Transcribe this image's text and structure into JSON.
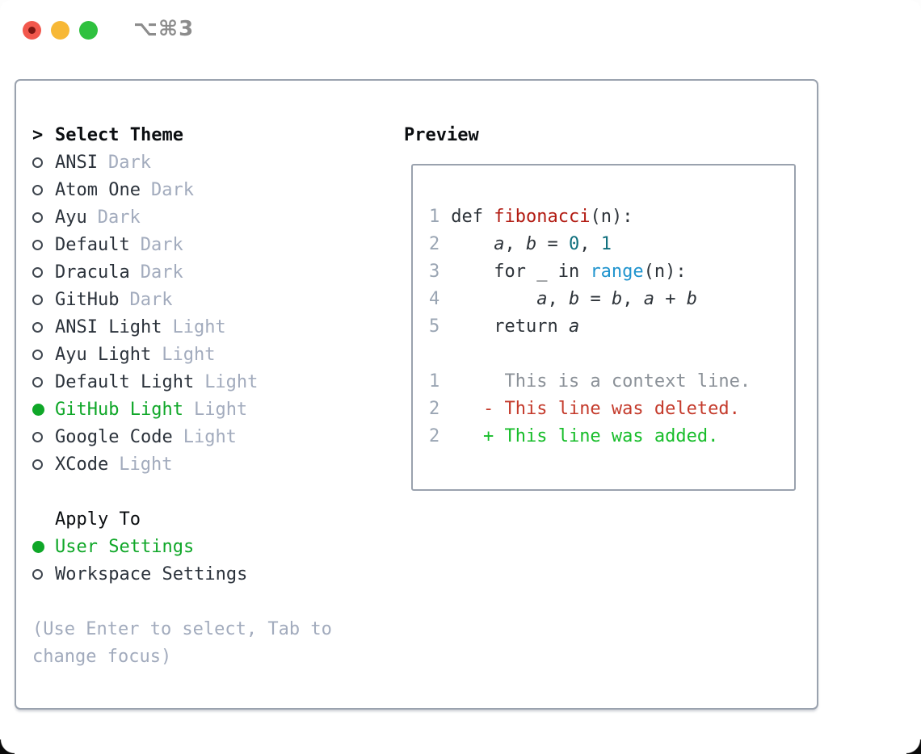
{
  "titlebar": {
    "title": "⌥⌘3",
    "buttons": [
      "close",
      "minimize",
      "zoom"
    ]
  },
  "colors": {
    "selection_green": "#0fa728",
    "added_green": "#17bd2a",
    "deleted_red": "#c43a2b",
    "context_gray": "#8b9198",
    "function_red": "#b21b12",
    "number_teal": "#0f6f7d",
    "builtin_blue": "#2094ce",
    "muted_gray": "#a2abbd",
    "panel_border": "#9aa2ae",
    "traffic_red": "#f2584d",
    "traffic_yellow": "#f7b836",
    "traffic_green": "#2fc13f"
  },
  "theme_list": {
    "header_prefix": ">",
    "header": "Select Theme",
    "items": [
      {
        "label": "ANSI",
        "variant": "Dark",
        "selected": false
      },
      {
        "label": "Atom One",
        "variant": "Dark",
        "selected": false
      },
      {
        "label": "Ayu",
        "variant": "Dark",
        "selected": false
      },
      {
        "label": "Default",
        "variant": "Dark",
        "selected": false
      },
      {
        "label": "Dracula",
        "variant": "Dark",
        "selected": false
      },
      {
        "label": "GitHub",
        "variant": "Dark",
        "selected": false
      },
      {
        "label": "ANSI Light",
        "variant": "Light",
        "selected": false
      },
      {
        "label": "Ayu Light",
        "variant": "Light",
        "selected": false
      },
      {
        "label": "Default Light",
        "variant": "Light",
        "selected": false
      },
      {
        "label": "GitHub Light",
        "variant": "Light",
        "selected": true
      },
      {
        "label": "Google Code",
        "variant": "Light",
        "selected": false
      },
      {
        "label": "XCode",
        "variant": "Light",
        "selected": false
      }
    ]
  },
  "apply_to": {
    "header": "Apply To",
    "options": [
      {
        "label": "User Settings",
        "selected": true
      },
      {
        "label": "Workspace Settings",
        "selected": false
      }
    ]
  },
  "hint_lines": [
    "(Use Enter to select, Tab to",
    "change focus)"
  ],
  "preview": {
    "header": "Preview",
    "lines": [
      {
        "kind": "code",
        "num": "1",
        "segments": [
          {
            "text": " def ",
            "style": "plain"
          },
          {
            "text": "fibonacci",
            "style": "function"
          },
          {
            "text": "(n):",
            "style": "plain"
          }
        ]
      },
      {
        "kind": "code",
        "num": "2",
        "segments": [
          {
            "text": "     ",
            "style": "plain"
          },
          {
            "text": "a",
            "style": "variable"
          },
          {
            "text": ", ",
            "style": "plain"
          },
          {
            "text": "b",
            "style": "variable"
          },
          {
            "text": " = ",
            "style": "plain"
          },
          {
            "text": "0",
            "style": "number"
          },
          {
            "text": ", ",
            "style": "plain"
          },
          {
            "text": "1",
            "style": "number"
          }
        ]
      },
      {
        "kind": "code",
        "num": "3",
        "segments": [
          {
            "text": "     for _ in ",
            "style": "plain"
          },
          {
            "text": "range",
            "style": "builtin"
          },
          {
            "text": "(n):",
            "style": "plain"
          }
        ]
      },
      {
        "kind": "code",
        "num": "4",
        "segments": [
          {
            "text": "         ",
            "style": "plain"
          },
          {
            "text": "a",
            "style": "variable"
          },
          {
            "text": ", ",
            "style": "plain"
          },
          {
            "text": "b",
            "style": "variable"
          },
          {
            "text": " = ",
            "style": "plain"
          },
          {
            "text": "b",
            "style": "variable"
          },
          {
            "text": ", ",
            "style": "plain"
          },
          {
            "text": "a",
            "style": "variable"
          },
          {
            "text": " + ",
            "style": "plain"
          },
          {
            "text": "b",
            "style": "variable"
          }
        ]
      },
      {
        "kind": "code",
        "num": "5",
        "segments": [
          {
            "text": "     return ",
            "style": "plain"
          },
          {
            "text": "a",
            "style": "variable"
          }
        ]
      },
      {
        "kind": "blank",
        "num": "",
        "segments": []
      },
      {
        "kind": "context",
        "num": "1",
        "segments": [
          {
            "text": "      This is a context line.",
            "style": "context"
          }
        ]
      },
      {
        "kind": "deleted",
        "num": "2",
        "segments": [
          {
            "text": "    ",
            "style": "plain"
          },
          {
            "text": "- This line was deleted.",
            "style": "deleted"
          }
        ]
      },
      {
        "kind": "added",
        "num": "2",
        "segments": [
          {
            "text": "    ",
            "style": "plain"
          },
          {
            "text": "+ This line was added.",
            "style": "added"
          }
        ]
      }
    ]
  }
}
